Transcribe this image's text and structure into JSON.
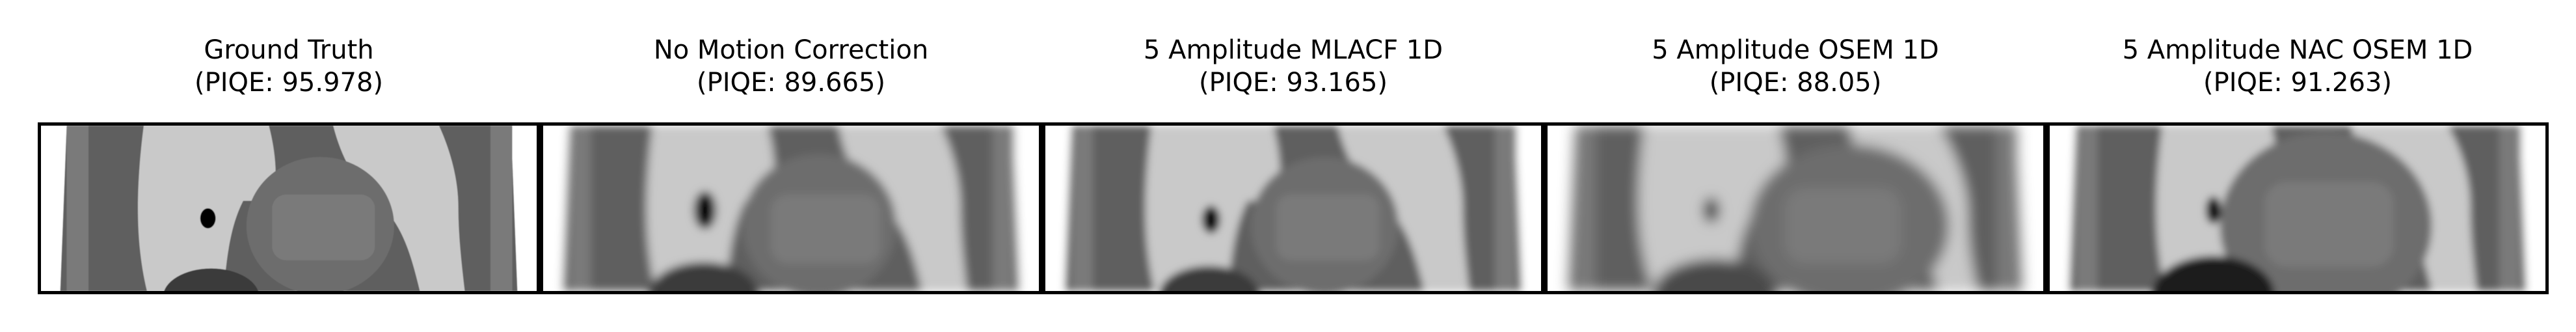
{
  "figure": {
    "panels": [
      {
        "title": "Ground Truth",
        "subtitle": "(PIQE: 95.978)",
        "variant": "gt"
      },
      {
        "title": "No Motion Correction",
        "subtitle": "(PIQE: 89.665)",
        "variant": "nomc"
      },
      {
        "title": "5 Amplitude MLACF 1D",
        "subtitle": "(PIQE: 93.165)",
        "variant": "mlacf"
      },
      {
        "title": "5 Amplitude OSEM 1D",
        "subtitle": "(PIQE: 88.05)",
        "variant": "osem"
      },
      {
        "title": "5 Amplitude NAC OSEM 1D",
        "subtitle": "(PIQE: 91.263)",
        "variant": "nac"
      }
    ]
  },
  "colors": {
    "background": "#ffffff",
    "frame": "#000000",
    "tissue_dark": "#5f5f5f",
    "tissue_mid": "#7a7a7a",
    "lung_light": "#c9c9c9",
    "lesion": "#000000"
  }
}
